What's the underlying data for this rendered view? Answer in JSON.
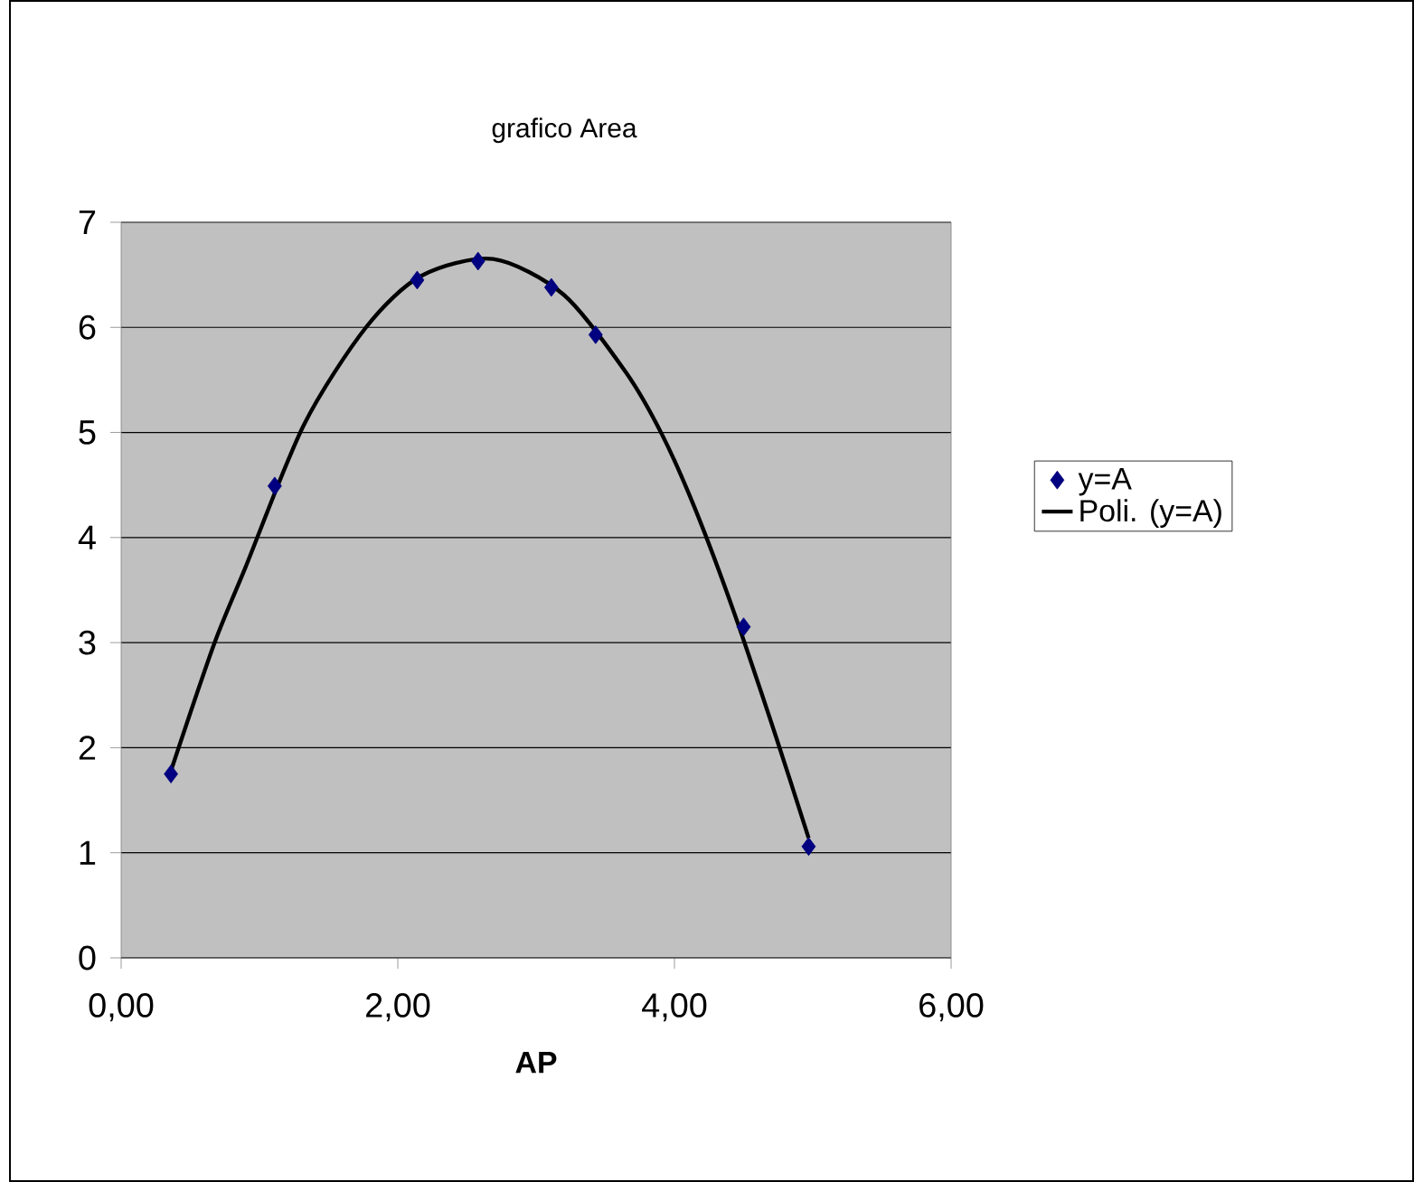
{
  "chart_data": {
    "type": "scatter",
    "title": "grafico Area",
    "xlabel": "AP",
    "xlim": [
      0,
      6
    ],
    "ylim": [
      0,
      7
    ],
    "xticks": [
      {
        "value": 0,
        "label": "0,00"
      },
      {
        "value": 2,
        "label": "2,00"
      },
      {
        "value": 4,
        "label": "4,00"
      },
      {
        "value": 6,
        "label": "6,00"
      }
    ],
    "yticks": [
      0,
      1,
      2,
      3,
      4,
      5,
      6,
      7
    ],
    "grid": "y",
    "legend": "right",
    "series": [
      {
        "name": "y=A",
        "marker": "diamond",
        "color": "#000080",
        "x": [
          0.36,
          1.11,
          2.14,
          2.58,
          3.11,
          3.43,
          4.5,
          4.97
        ],
        "values": [
          1.75,
          4.49,
          6.45,
          6.63,
          6.38,
          5.93,
          3.15,
          1.06
        ]
      },
      {
        "name": "Poli. (y=A)",
        "type": "line",
        "marker": "none",
        "line_style": "solid",
        "color": "#000000",
        "x": [
          0.36,
          0.67,
          0.9,
          1.32,
          1.77,
          2.17,
          2.69,
          3.2,
          3.65,
          3.91,
          4.15,
          4.43,
          4.73,
          4.97
        ],
        "values": [
          1.78,
          2.98,
          3.72,
          5.07,
          6.0,
          6.49,
          6.65,
          6.31,
          5.57,
          4.98,
          4.27,
          3.29,
          2.12,
          1.14
        ]
      }
    ]
  }
}
